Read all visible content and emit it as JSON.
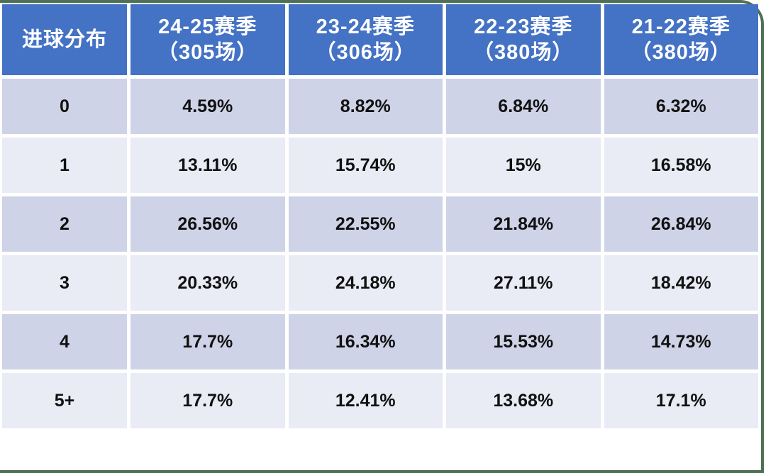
{
  "table": {
    "corner_header": "进球分布",
    "season_headers": [
      {
        "season": "24-25赛季",
        "matches": "（305场）"
      },
      {
        "season": "23-24赛季",
        "matches": "（306场）"
      },
      {
        "season": "22-23赛季",
        "matches": "（380场）"
      },
      {
        "season": "21-22赛季",
        "matches": "（380场）"
      }
    ],
    "rows": [
      {
        "goals": "0",
        "values": [
          "4.59%",
          "8.82%",
          "6.84%",
          "6.32%"
        ]
      },
      {
        "goals": "1",
        "values": [
          "13.11%",
          "15.74%",
          "15%",
          "16.58%"
        ]
      },
      {
        "goals": "2",
        "values": [
          "26.56%",
          "22.55%",
          "21.84%",
          "26.84%"
        ]
      },
      {
        "goals": "3",
        "values": [
          "20.33%",
          "24.18%",
          "27.11%",
          "18.42%"
        ]
      },
      {
        "goals": "4",
        "values": [
          "17.7%",
          "16.34%",
          "15.53%",
          "14.73%"
        ]
      },
      {
        "goals": "5+",
        "values": [
          "17.7%",
          "12.41%",
          "13.68%",
          "17.1%"
        ]
      }
    ]
  },
  "colors": {
    "header_bg": "#4472c4",
    "header_text": "#ffffff",
    "row_dark_bg": "#ced3e7",
    "row_light_bg": "#e9ebf5",
    "cell_text": "#111111",
    "frame_green": "#4e7155",
    "background": "#ffffff"
  },
  "chart_data": {
    "type": "table",
    "title": "进球分布",
    "categories": [
      "0",
      "1",
      "2",
      "3",
      "4",
      "5+"
    ],
    "series": [
      {
        "name": "24-25赛季（305场）",
        "values": [
          4.59,
          13.11,
          26.56,
          20.33,
          17.7,
          17.7
        ]
      },
      {
        "name": "23-24赛季（306场）",
        "values": [
          8.82,
          15.74,
          22.55,
          24.18,
          16.34,
          12.41
        ]
      },
      {
        "name": "22-23赛季（380场）",
        "values": [
          6.84,
          15,
          21.84,
          27.11,
          15.53,
          13.68
        ]
      },
      {
        "name": "21-22赛季（380场）",
        "values": [
          6.32,
          16.58,
          26.84,
          18.42,
          14.73,
          17.1
        ]
      }
    ],
    "value_unit": "%"
  }
}
